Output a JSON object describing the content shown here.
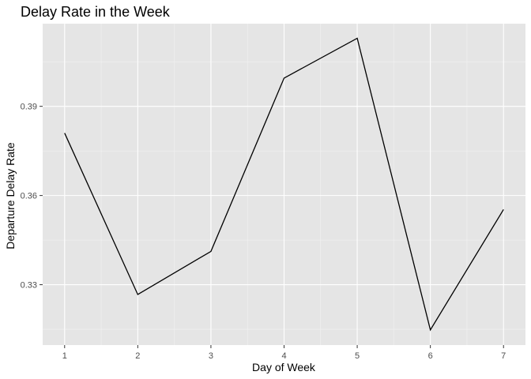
{
  "chart_data": {
    "type": "line",
    "title": "Delay Rate in the Week",
    "xlabel": "Day of Week",
    "ylabel": "Departure Delay Rate",
    "x": [
      1,
      2,
      3,
      4,
      5,
      6,
      7
    ],
    "series": [
      {
        "values": [
          0.381,
          0.3267,
          0.3412,
          0.3995,
          0.4129,
          0.3148,
          0.3553
        ]
      }
    ],
    "xticks": [
      1,
      2,
      3,
      4,
      5,
      6,
      7
    ],
    "xtick_labels": [
      "1",
      "2",
      "3",
      "4",
      "5",
      "6",
      "7"
    ],
    "yticks": [
      0.33,
      0.36,
      0.39
    ],
    "ytick_labels": [
      "0.33",
      "0.36",
      "0.39"
    ],
    "xlim": [
      0.7,
      7.3
    ],
    "ylim": [
      0.3097,
      0.4178
    ],
    "grid": true,
    "theme": "ggplot2 gray",
    "colors": {
      "panel_background": "#e5e5e5",
      "grid_major": "#ffffff",
      "line": "#000000",
      "tick_text": "#4d4d4d",
      "tick_mark": "#333333"
    }
  }
}
